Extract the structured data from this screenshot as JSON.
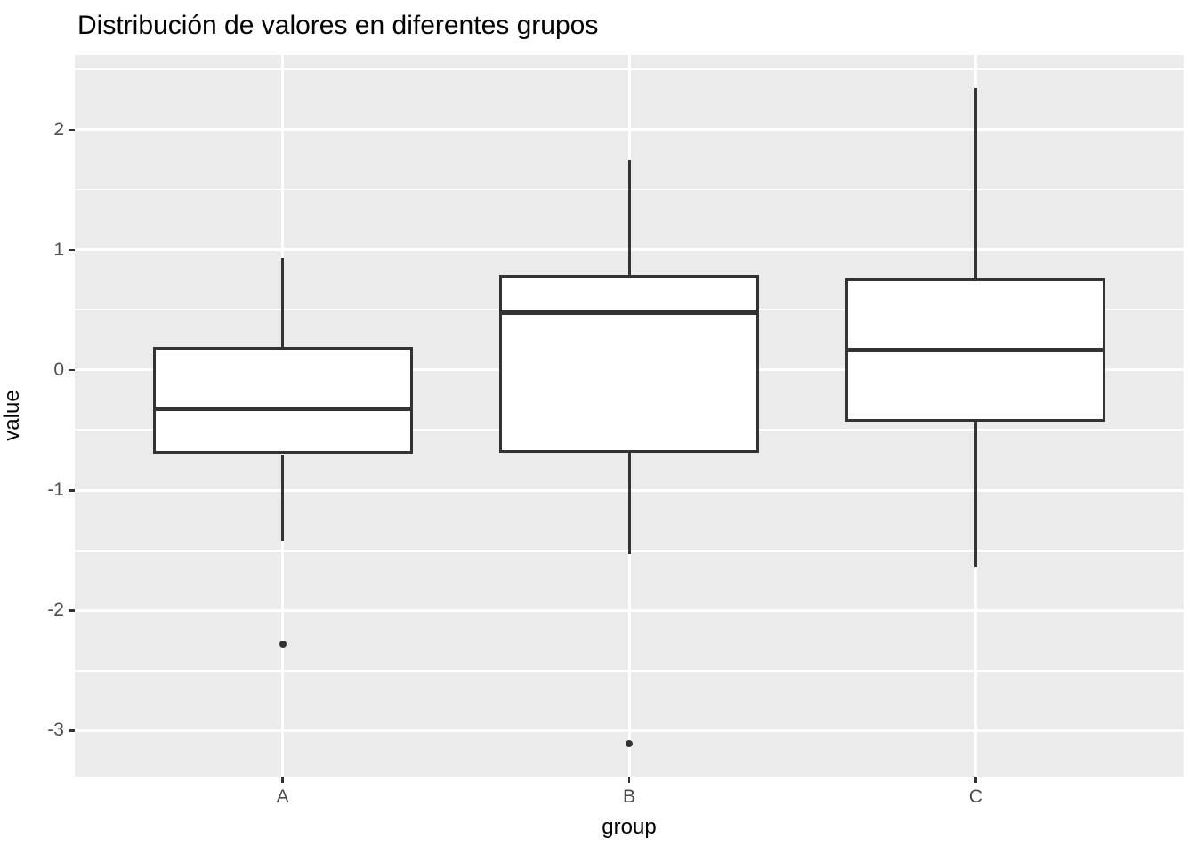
{
  "chart_data": {
    "type": "boxplot",
    "title": "Distribución de valores en diferentes grupos",
    "xlabel": "group",
    "ylabel": "value",
    "categories": [
      "A",
      "B",
      "C"
    ],
    "series": [
      {
        "category": "A",
        "whisker_low": -1.42,
        "q1": -0.7,
        "median": -0.32,
        "q3": 0.19,
        "whisker_high": 0.93,
        "outliers": [
          -2.28
        ]
      },
      {
        "category": "B",
        "whisker_low": -1.53,
        "q1": -0.69,
        "median": 0.48,
        "q3": 0.79,
        "whisker_high": 1.75,
        "outliers": [
          -3.11
        ]
      },
      {
        "category": "C",
        "whisker_low": -1.64,
        "q1": -0.43,
        "median": 0.17,
        "q3": 0.76,
        "whisker_high": 2.35,
        "outliers": []
      }
    ],
    "y_ticks": [
      2,
      1,
      0,
      -1,
      -2,
      -3
    ],
    "y_minor_ticks": [
      2.5,
      1.5,
      0.5,
      -0.5,
      -1.5,
      -2.5
    ],
    "ylim": [
      -3.385,
      2.622
    ],
    "grid": "on",
    "legend": "none",
    "colors": {
      "panel_background": "#EBEBEB",
      "gridline": "#FFFFFF",
      "box_stroke": "#333333",
      "box_fill": "#FFFFFF",
      "tick_label": "#4D4D4D",
      "title_text": "#000000"
    },
    "layout": {
      "box_width_ratio": 0.75,
      "category_edge_padding": 0.6
    }
  }
}
